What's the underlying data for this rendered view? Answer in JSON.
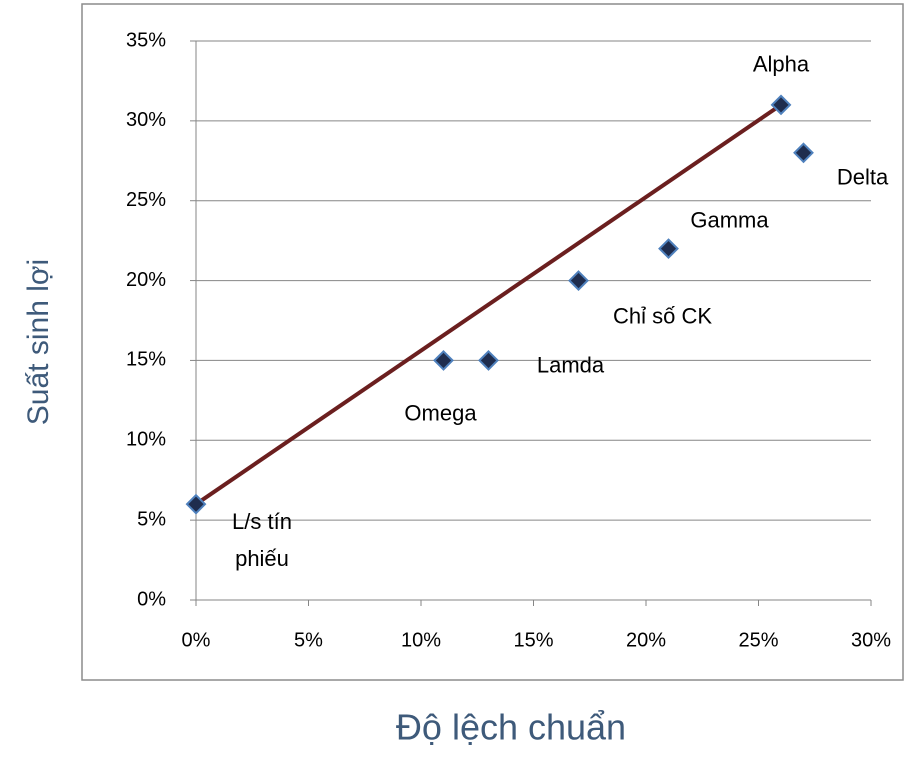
{
  "chart_data": {
    "type": "scatter",
    "x_label": "Độ lệch chuẩn",
    "y_label": "Suất sinh lợi",
    "point_labels": [
      "L/s tín phiếu",
      "Omega",
      "Lamda",
      "Chỉ số CK",
      "Gamma",
      "Alpha",
      "Delta"
    ],
    "x": [
      0,
      11,
      13,
      17,
      21,
      26,
      27
    ],
    "values": [
      6,
      15,
      15,
      20,
      22,
      31,
      28
    ],
    "color": "#1f2d4e",
    "line": {
      "x": [
        0,
        26
      ],
      "values": [
        6,
        31
      ],
      "color": "#6b1f1f"
    },
    "xlim": [
      0,
      30
    ],
    "ylim": [
      0,
      35
    ],
    "xticks": [
      {
        "value": 0,
        "label": "0%"
      },
      {
        "value": 5,
        "label": "5%"
      },
      {
        "value": 10,
        "label": "10%"
      },
      {
        "value": 15,
        "label": "15%"
      },
      {
        "value": 20,
        "label": "20%"
      },
      {
        "value": 25,
        "label": "25%"
      },
      {
        "value": 30,
        "label": "30%"
      }
    ],
    "yticks": [
      {
        "value": 0,
        "label": "0%"
      },
      {
        "value": 5,
        "label": "5%"
      },
      {
        "value": 10,
        "label": "10%"
      },
      {
        "value": 15,
        "label": "15%"
      },
      {
        "value": 20,
        "label": "20%"
      },
      {
        "value": 25,
        "label": "25%"
      },
      {
        "value": 30,
        "label": "30%"
      },
      {
        "value": 35,
        "label": "35%"
      }
    ],
    "grid": true
  }
}
